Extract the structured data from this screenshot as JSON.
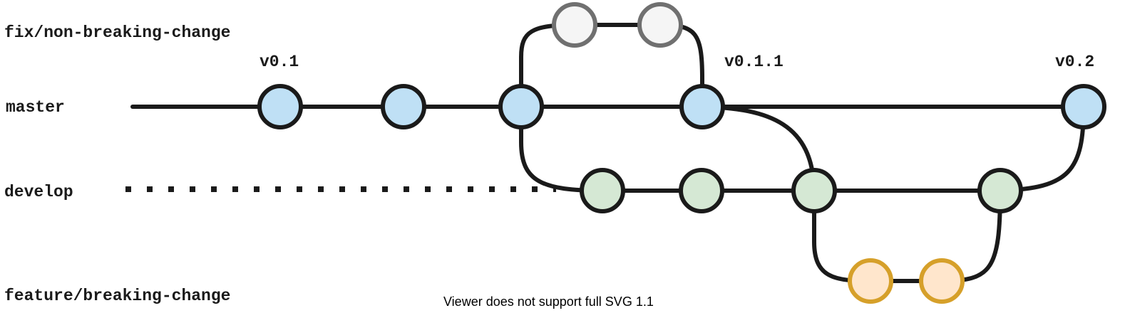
{
  "branches": {
    "fix": "fix/non-breaking-change",
    "master": "master",
    "develop": "develop",
    "feature": "feature/breaking-change"
  },
  "tags": {
    "v0_1": "v0.1",
    "v0_1_1": "v0.1.1",
    "v0_2": "v0.2"
  },
  "footer": {
    "note": "Viewer does not support full SVG 1.1"
  },
  "colors": {
    "master_fill": "#bfe0f5",
    "master_stroke": "#1a1a1a",
    "develop_fill": "#d5e8d4",
    "develop_stroke": "#1a1a1a",
    "fix_fill": "#f5f5f5",
    "fix_stroke": "#707070",
    "feature_fill": "#ffe6cc",
    "feature_stroke": "#d6a02a",
    "line": "#1a1a1a"
  },
  "commits": {
    "master": 5,
    "develop": 4,
    "fix": 2,
    "feature": 2
  }
}
